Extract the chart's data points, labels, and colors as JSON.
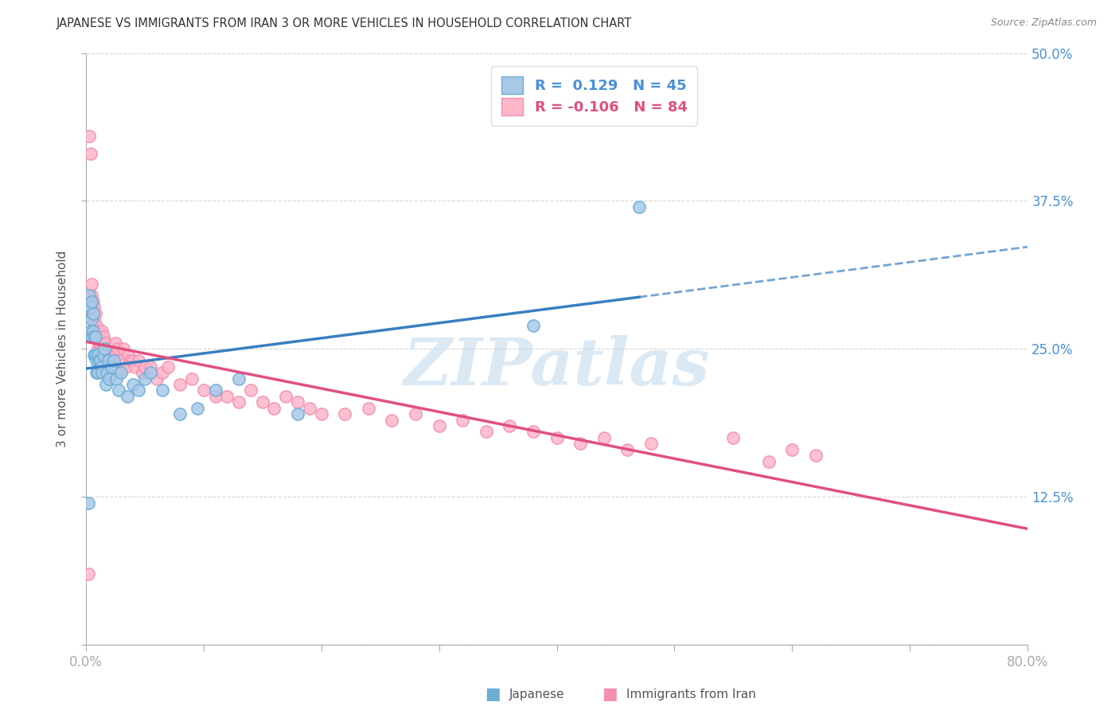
{
  "title": "JAPANESE VS IMMIGRANTS FROM IRAN 3 OR MORE VEHICLES IN HOUSEHOLD CORRELATION CHART",
  "source": "Source: ZipAtlas.com",
  "ylabel": "3 or more Vehicles in Household",
  "xlim": [
    0.0,
    0.8
  ],
  "ylim": [
    0.0,
    0.5
  ],
  "ytick_positions": [
    0.0,
    0.125,
    0.25,
    0.375,
    0.5
  ],
  "yticklabels": [
    "",
    "12.5%",
    "25.0%",
    "37.5%",
    "50.0%"
  ],
  "legend1_r": "0.129",
  "legend1_n": "45",
  "legend2_r": "-0.106",
  "legend2_n": "84",
  "color_japanese": "#a8c8e8",
  "color_japanese_edge": "#6baed6",
  "color_iran": "#ffb6c8",
  "color_iran_edge": "#f48fb1",
  "color_japanese_line": "#3a7fc1",
  "color_iran_line": "#e05080",
  "watermark": "ZIPatlas",
  "japanese_x": [
    0.002,
    0.003,
    0.004,
    0.004,
    0.005,
    0.005,
    0.005,
    0.006,
    0.006,
    0.007,
    0.007,
    0.008,
    0.008,
    0.009,
    0.009,
    0.01,
    0.01,
    0.011,
    0.012,
    0.013,
    0.014,
    0.015,
    0.016,
    0.017,
    0.018,
    0.019,
    0.02,
    0.022,
    0.024,
    0.026,
    0.028,
    0.03,
    0.035,
    0.04,
    0.045,
    0.05,
    0.055,
    0.065,
    0.08,
    0.095,
    0.11,
    0.13,
    0.18,
    0.38,
    0.47
  ],
  "japanese_y": [
    0.12,
    0.295,
    0.285,
    0.265,
    0.29,
    0.275,
    0.26,
    0.28,
    0.265,
    0.245,
    0.26,
    0.26,
    0.245,
    0.24,
    0.23,
    0.245,
    0.23,
    0.24,
    0.24,
    0.235,
    0.23,
    0.245,
    0.25,
    0.22,
    0.23,
    0.24,
    0.225,
    0.235,
    0.24,
    0.225,
    0.215,
    0.23,
    0.21,
    0.22,
    0.215,
    0.225,
    0.23,
    0.215,
    0.195,
    0.2,
    0.215,
    0.225,
    0.195,
    0.27,
    0.37
  ],
  "iran_x": [
    0.002,
    0.003,
    0.004,
    0.005,
    0.005,
    0.006,
    0.006,
    0.007,
    0.007,
    0.008,
    0.008,
    0.009,
    0.009,
    0.01,
    0.01,
    0.011,
    0.011,
    0.012,
    0.012,
    0.013,
    0.013,
    0.014,
    0.014,
    0.015,
    0.015,
    0.016,
    0.016,
    0.017,
    0.018,
    0.019,
    0.02,
    0.021,
    0.022,
    0.023,
    0.024,
    0.025,
    0.026,
    0.027,
    0.028,
    0.03,
    0.032,
    0.034,
    0.036,
    0.038,
    0.04,
    0.042,
    0.045,
    0.048,
    0.05,
    0.055,
    0.06,
    0.065,
    0.07,
    0.08,
    0.09,
    0.1,
    0.11,
    0.12,
    0.13,
    0.14,
    0.15,
    0.16,
    0.17,
    0.18,
    0.19,
    0.2,
    0.22,
    0.24,
    0.26,
    0.28,
    0.3,
    0.32,
    0.34,
    0.36,
    0.38,
    0.4,
    0.42,
    0.44,
    0.46,
    0.48,
    0.55,
    0.58,
    0.6,
    0.62
  ],
  "iran_y": [
    0.06,
    0.43,
    0.415,
    0.295,
    0.305,
    0.28,
    0.29,
    0.285,
    0.275,
    0.28,
    0.265,
    0.27,
    0.26,
    0.26,
    0.25,
    0.255,
    0.265,
    0.25,
    0.26,
    0.255,
    0.26,
    0.265,
    0.25,
    0.26,
    0.255,
    0.25,
    0.245,
    0.255,
    0.25,
    0.245,
    0.25,
    0.245,
    0.25,
    0.245,
    0.24,
    0.255,
    0.245,
    0.25,
    0.23,
    0.24,
    0.25,
    0.235,
    0.245,
    0.24,
    0.24,
    0.235,
    0.24,
    0.23,
    0.235,
    0.235,
    0.225,
    0.23,
    0.235,
    0.22,
    0.225,
    0.215,
    0.21,
    0.21,
    0.205,
    0.215,
    0.205,
    0.2,
    0.21,
    0.205,
    0.2,
    0.195,
    0.195,
    0.2,
    0.19,
    0.195,
    0.185,
    0.19,
    0.18,
    0.185,
    0.18,
    0.175,
    0.17,
    0.175,
    0.165,
    0.17,
    0.175,
    0.155,
    0.165,
    0.16
  ]
}
